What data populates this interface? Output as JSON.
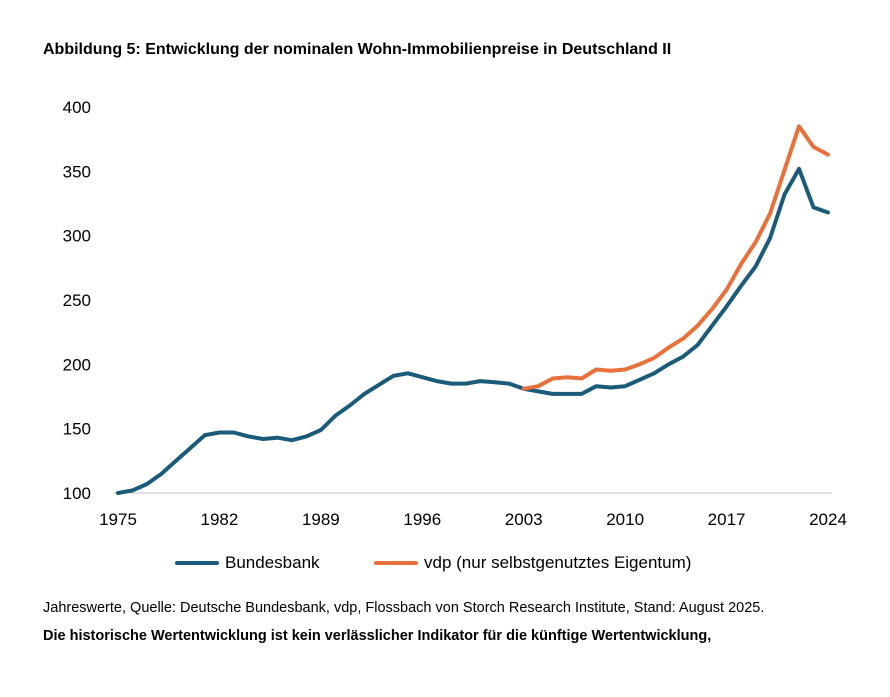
{
  "title": "Abbildung 5: Entwicklung der nominalen Wohn-Immobilienpreise in Deutschland II",
  "footnote": "Jahreswerte, Quelle: Deutsche Bundesbank, vdp, Flossbach von Storch Research Institute, Stand: August 2025.",
  "disclaimer": "Die historische Wertentwicklung ist kein verlässlicher Indikator für die künftige Wertentwicklung,",
  "chart_data": {
    "type": "line",
    "title": "Abbildung 5: Entwicklung der nominalen Wohn-Immobilienpreise in Deutschland II",
    "xlabel": "",
    "ylabel": "",
    "xlim": [
      1975,
      2024
    ],
    "ylim": [
      100,
      400
    ],
    "y_ticks": [
      100,
      150,
      200,
      250,
      300,
      350,
      400
    ],
    "x_ticks": [
      1975,
      1982,
      1989,
      1996,
      2003,
      2010,
      2017,
      2024
    ],
    "grid": false,
    "legend": "bottom",
    "series": [
      {
        "name": "Bundesbank",
        "color": "#1b5b7a",
        "x": [
          1975,
          1976,
          1977,
          1978,
          1979,
          1980,
          1981,
          1982,
          1983,
          1984,
          1985,
          1986,
          1987,
          1988,
          1989,
          1990,
          1991,
          1992,
          1993,
          1994,
          1995,
          1996,
          1997,
          1998,
          1999,
          2000,
          2001,
          2002,
          2003,
          2004,
          2005,
          2006,
          2007,
          2008,
          2009,
          2010,
          2011,
          2012,
          2013,
          2014,
          2015,
          2016,
          2017,
          2018,
          2019,
          2020,
          2021,
          2022,
          2023,
          2024
        ],
        "y": [
          100,
          102,
          107,
          115,
          125,
          135,
          145,
          147,
          147,
          144,
          142,
          143,
          141,
          144,
          149,
          160,
          168,
          177,
          184,
          191,
          193,
          190,
          187,
          185,
          185,
          187,
          186,
          185,
          181,
          179,
          177,
          177,
          177,
          183,
          182,
          183,
          188,
          193,
          200,
          206,
          215,
          230,
          245,
          261,
          276,
          298,
          332,
          352,
          322,
          318
        ]
      },
      {
        "name": "vdp (nur selbstgenutztes Eigentum)",
        "color": "#e8703a",
        "x": [
          2003,
          2004,
          2005,
          2006,
          2007,
          2008,
          2009,
          2010,
          2011,
          2012,
          2013,
          2014,
          2015,
          2016,
          2017,
          2018,
          2019,
          2020,
          2021,
          2022,
          2023,
          2024
        ],
        "y": [
          181,
          183,
          189,
          190,
          189,
          196,
          195,
          196,
          200,
          205,
          213,
          220,
          230,
          243,
          258,
          278,
          295,
          317,
          351,
          385,
          369,
          363
        ]
      }
    ]
  }
}
